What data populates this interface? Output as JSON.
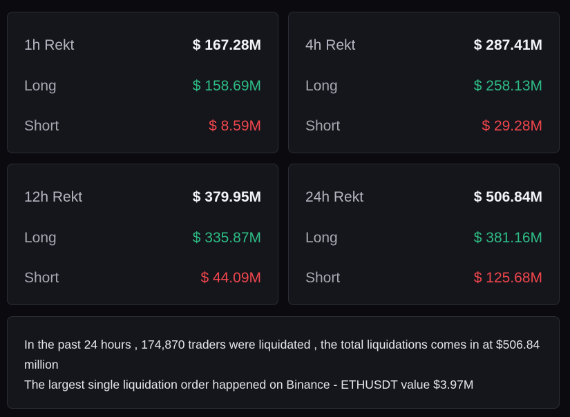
{
  "cards": [
    {
      "title": "1h Rekt",
      "total": "$ 167.28M",
      "long_label": "Long",
      "long_value": "$ 158.69M",
      "short_label": "Short",
      "short_value": "$ 8.59M"
    },
    {
      "title": "4h Rekt",
      "total": "$ 287.41M",
      "long_label": "Long",
      "long_value": "$ 258.13M",
      "short_label": "Short",
      "short_value": "$ 29.28M"
    },
    {
      "title": "12h Rekt",
      "total": "$ 379.95M",
      "long_label": "Long",
      "long_value": "$ 335.87M",
      "short_label": "Short",
      "short_value": "$ 44.09M"
    },
    {
      "title": "24h Rekt",
      "total": "$ 506.84M",
      "long_label": "Long",
      "long_value": "$ 381.16M",
      "short_label": "Short",
      "short_value": "$ 125.68M"
    }
  ],
  "summary": {
    "line1": "In the past 24 hours , 174,870 traders were liquidated , the total liquidations comes in at $506.84 million",
    "line2": "The largest single liquidation order happened on Binance - ETHUSDT value $3.97M"
  },
  "colors": {
    "background": "#0b0b0f",
    "card": "#15161c",
    "long": "#2ebd85",
    "short": "#f0464c"
  }
}
